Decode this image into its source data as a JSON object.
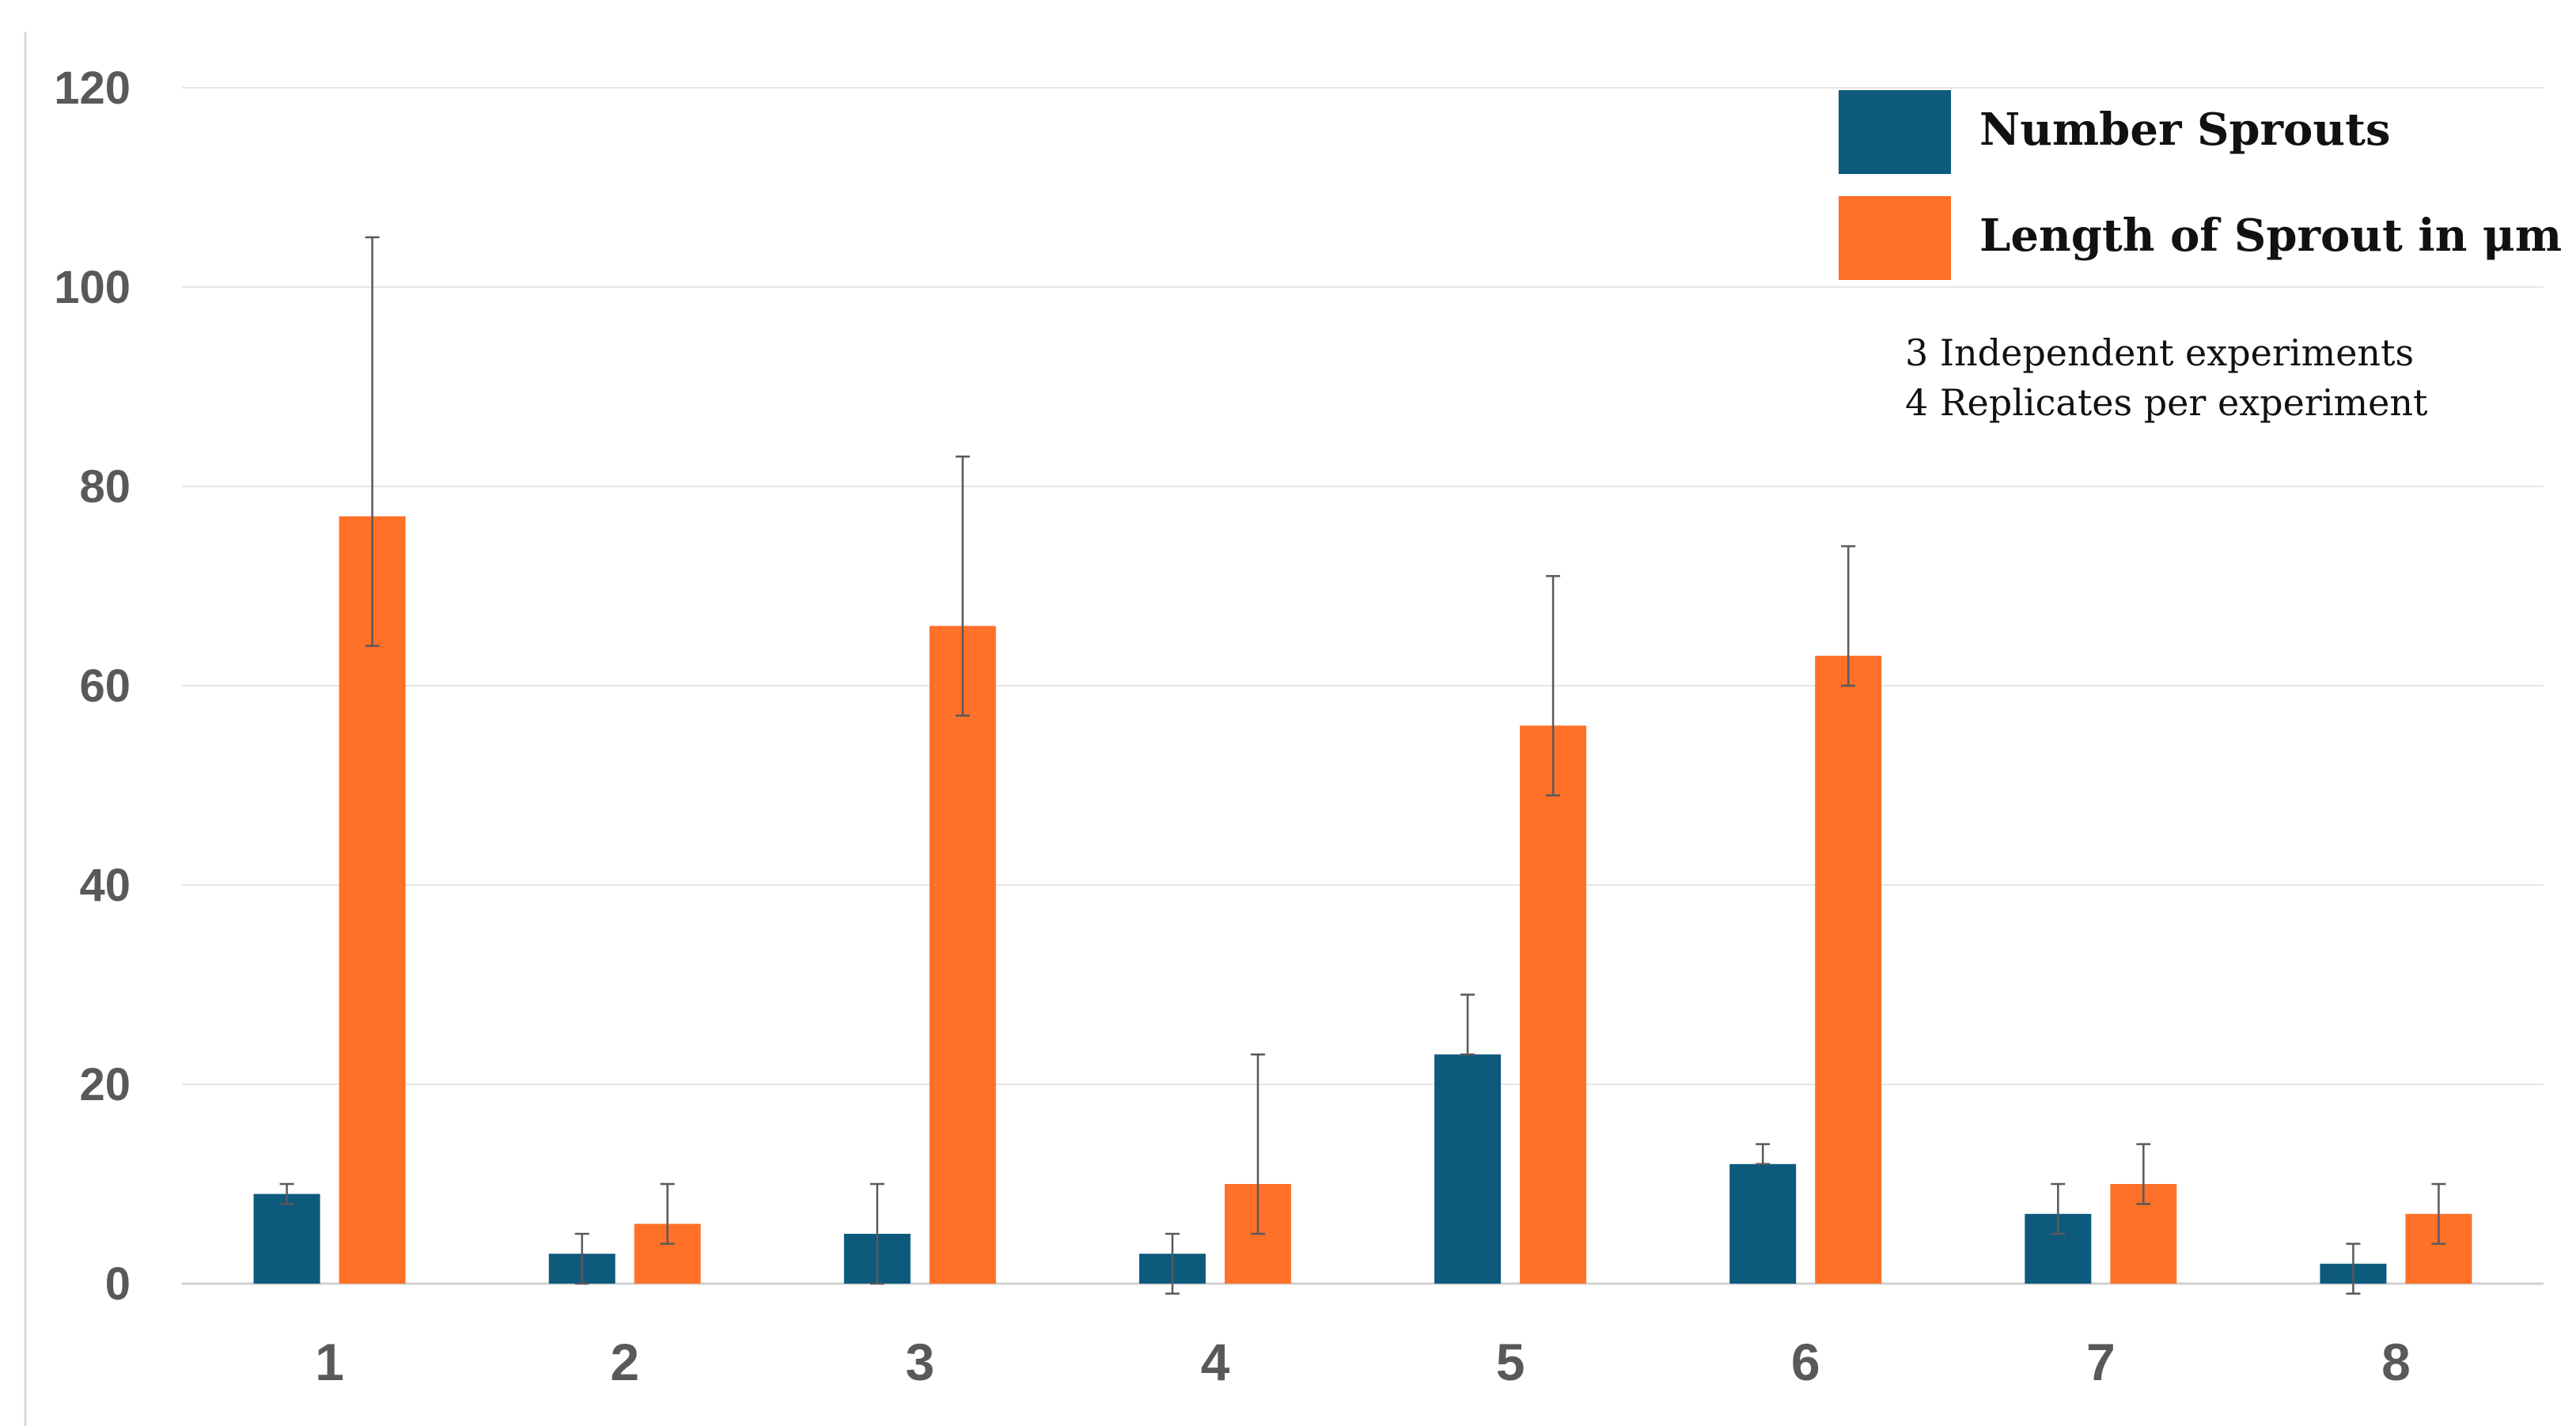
{
  "chart_data": {
    "type": "bar",
    "title": "",
    "xlabel": "",
    "ylabel": "",
    "ylim": [
      0,
      120
    ],
    "yticks": [
      "0",
      "20",
      "40",
      "60",
      "80",
      "100",
      "120"
    ],
    "grid": true,
    "categories": [
      "1",
      "2",
      "3",
      "4",
      "5",
      "6",
      "7",
      "8"
    ],
    "series": [
      {
        "name": "Number Sprouts",
        "color": "#0d5a7d",
        "values": [
          9,
          3,
          5,
          3,
          23,
          12,
          7,
          2
        ],
        "err_low": [
          8,
          0,
          0,
          -1,
          23,
          12,
          5,
          -1
        ],
        "err_high": [
          10,
          5,
          10,
          5,
          29,
          14,
          10,
          4
        ]
      },
      {
        "name": "Length of Sprout in μm",
        "color": "#ff7128",
        "values": [
          77,
          6,
          66,
          10,
          56,
          63,
          10,
          7
        ],
        "err_low": [
          64,
          4,
          57,
          5,
          49,
          60,
          8,
          4
        ],
        "err_high": [
          105,
          10,
          83,
          23,
          71,
          74,
          14,
          10
        ]
      }
    ],
    "legend_position": "top-right",
    "annotations": [
      "3 Independent experiments",
      "4 Replicates per experiment"
    ]
  }
}
